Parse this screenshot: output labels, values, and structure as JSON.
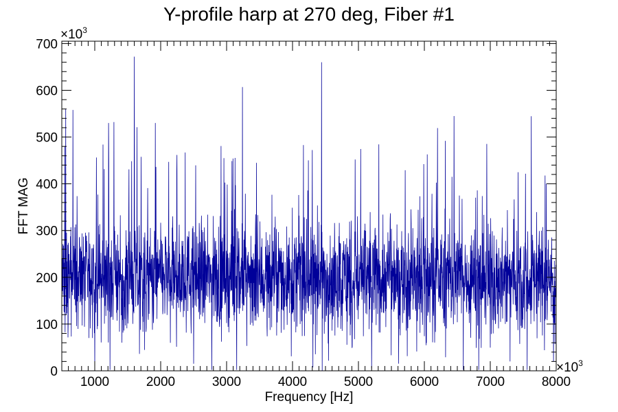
{
  "chart_data": {
    "type": "line",
    "title": "Y-profile harp at 270 deg, Fiber #1",
    "xlabel": "Frequency [Hz]",
    "ylabel": "FFT MAG",
    "x_multiplier_label": "×10",
    "x_multiplier_exp": "3",
    "y_multiplier_label": "×10",
    "y_multiplier_exp": "3",
    "xlim": [
      500,
      8000
    ],
    "ylim": [
      0,
      705
    ],
    "x_ticks": [
      1000,
      2000,
      3000,
      4000,
      5000,
      6000,
      7000,
      8000
    ],
    "x_tick_labels": [
      "1000",
      "2000",
      "3000",
      "4000",
      "5000",
      "6000",
      "7000",
      "8000"
    ],
    "y_ticks": [
      0,
      100,
      200,
      300,
      400,
      500,
      600,
      700
    ],
    "y_tick_labels": [
      "0",
      "100",
      "200",
      "300",
      "400",
      "500",
      "600",
      "700"
    ],
    "line_color": "#000099",
    "grid": false,
    "series": [
      {
        "baseline": 200,
        "spread": 90,
        "peaks": [
          {
            "x": 560,
            "y": 560
          },
          {
            "x": 670,
            "y": 558
          },
          {
            "x": 1210,
            "y": 530
          },
          {
            "x": 1290,
            "y": 532
          },
          {
            "x": 1600,
            "y": 672
          },
          {
            "x": 1920,
            "y": 530
          },
          {
            "x": 3240,
            "y": 607
          },
          {
            "x": 4440,
            "y": 660
          },
          {
            "x": 4950,
            "y": 452
          },
          {
            "x": 6450,
            "y": 545
          },
          {
            "x": 7850,
            "y": 400
          }
        ],
        "min_values": {
          "x": [
            1000,
            2500,
            4450,
            5200,
            7300
          ],
          "y": [
            5,
            15,
            0,
            5,
            20
          ]
        }
      }
    ]
  }
}
